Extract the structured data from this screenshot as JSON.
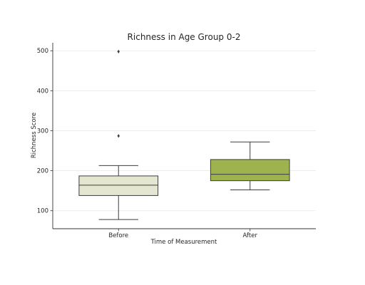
{
  "chart_data": {
    "type": "box",
    "title": "Richness in Age Group 0-2",
    "xlabel": "Time of Measurement",
    "ylabel": "Richness Score",
    "ylim": [
      55,
      520
    ],
    "yticks": [
      100,
      200,
      300,
      400,
      500
    ],
    "grid": "y",
    "categories": [
      "Before",
      "After"
    ],
    "boxes": [
      {
        "name": "Before",
        "whislo": 78,
        "q1": 138,
        "med": 164,
        "q3": 187,
        "whishi": 213,
        "fliers": [
          287,
          498
        ],
        "color": "#e4e6d1"
      },
      {
        "name": "After",
        "whislo": 152,
        "q1": 175,
        "med": 191,
        "q3": 228,
        "whishi": 272,
        "fliers": [],
        "color": "#9eb24d"
      }
    ]
  }
}
